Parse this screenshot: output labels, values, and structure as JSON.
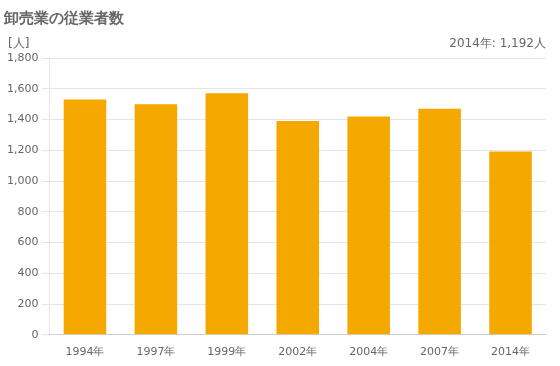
{
  "chart_data": {
    "type": "bar",
    "title": "卸売業の従業者数",
    "ylabel": "[人]",
    "annotation": "2014年: 1,192人",
    "categories": [
      "1994年",
      "1997年",
      "1999年",
      "2002年",
      "2004年",
      "2007年",
      "2014年"
    ],
    "values": [
      1530,
      1500,
      1570,
      1390,
      1420,
      1470,
      1192
    ],
    "color": "#F5A800",
    "ylim": [
      0,
      1800
    ],
    "yticks": [
      0,
      200,
      400,
      600,
      800,
      {
        "value": 1000,
        "label": "1,000"
      },
      {
        "value": 1200,
        "label": "1,200"
      },
      {
        "value": 1400,
        "label": "1,400"
      },
      {
        "value": 1600,
        "label": "1,600"
      },
      {
        "value": 1800,
        "label": "1,800"
      }
    ],
    "grid": true
  }
}
